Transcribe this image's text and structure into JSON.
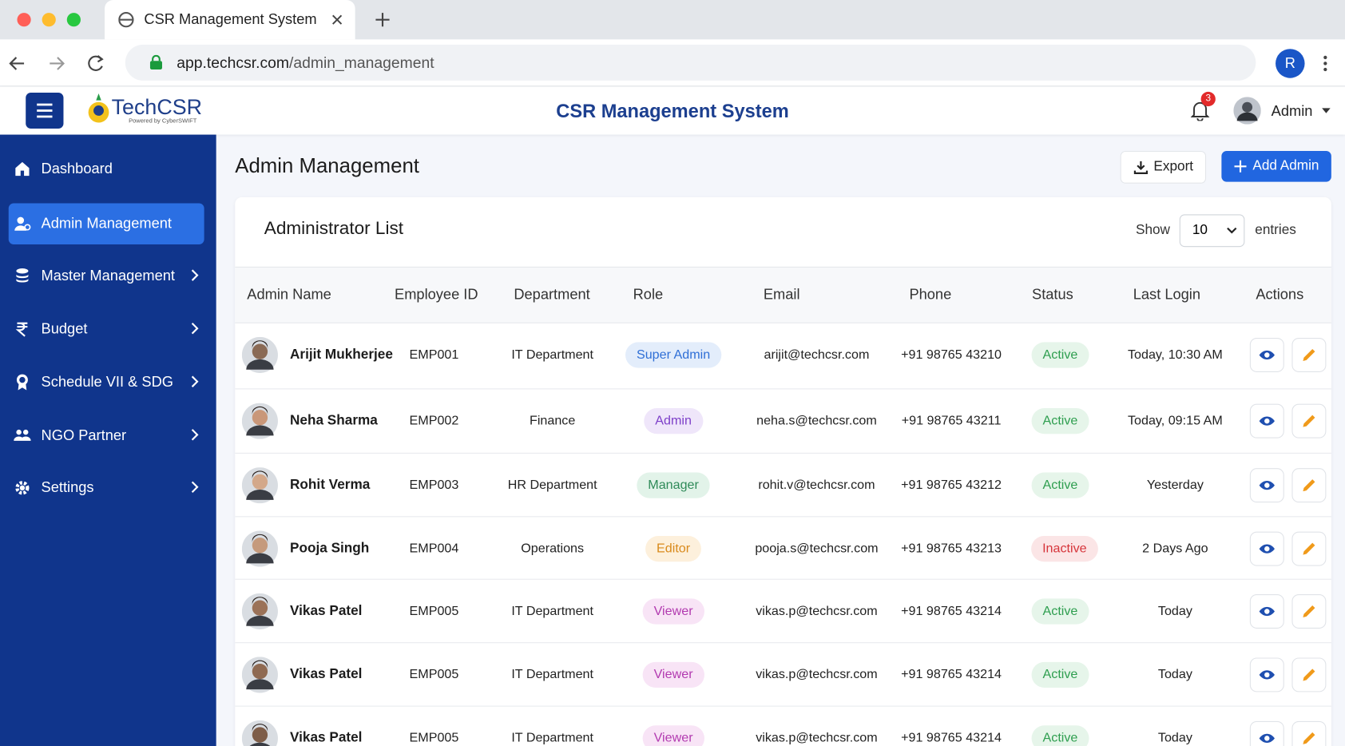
{
  "browser": {
    "tab_title": "CSR Management System",
    "url_host": "app.techcsr.com",
    "url_path": "/admin_management",
    "profile_initial": "R"
  },
  "header": {
    "logo_text": "TechCSR",
    "logo_tagline": "Powered by CyberSWIFT",
    "app_title": "CSR Management System",
    "notification_count": 3,
    "user": "Admin"
  },
  "sidebar": {
    "items": [
      {
        "label": "Dashboard",
        "active": false,
        "submenu": false
      },
      {
        "label": "Admin Management",
        "active": true,
        "submenu": false
      },
      {
        "label": "Master Management",
        "active": false,
        "submenu": true
      },
      {
        "label": "Budget",
        "active": false,
        "submenu": true
      },
      {
        "label": "Schedule VII & SDG",
        "active": false,
        "submenu": true
      },
      {
        "label": "NGO Partner",
        "active": false,
        "submenu": true
      },
      {
        "label": "Settings",
        "active": false,
        "submenu": true
      }
    ]
  },
  "page": {
    "title": "Admin Management",
    "export_button": "Export",
    "add_button": "Add Admin"
  },
  "table": {
    "title": "Administrator List",
    "show_label": "Show",
    "page_size": 10,
    "entries_label": "entries",
    "columns": [
      "Admin Name",
      "Employee ID",
      "Department",
      "Role",
      "Email",
      "Phone",
      "Status",
      "Last Login",
      "Actions"
    ],
    "rows": [
      {
        "name": "Arijit Mukherjee",
        "employee_id": "EMP001",
        "department": "IT Department",
        "role": "Super Admin",
        "role_color": "#2f6fd6",
        "role_bg": "#e3edfb",
        "email": "arijit@techcsr.com",
        "phone": "+91 98765 43210",
        "status": "Active",
        "status_color": "#2e9e4f",
        "status_bg": "#e6f5ea",
        "last_login": "Today, 10:30 AM"
      },
      {
        "name": "Neha Sharma",
        "employee_id": "EMP002",
        "department": "Finance",
        "role": "Admin",
        "role_color": "#7d3fc9",
        "role_bg": "#efe6fa",
        "email": "neha.s@techcsr.com",
        "phone": "+91 98765 43211",
        "status": "Active",
        "status_color": "#2e9e4f",
        "status_bg": "#e6f5ea",
        "last_login": "Today, 09:15 AM"
      },
      {
        "name": "Rohit Verma",
        "employee_id": "EMP003",
        "department": "HR Department",
        "role": "Manager",
        "role_color": "#2e8a58",
        "role_bg": "#e2f3e9",
        "email": "rohit.v@techcsr.com",
        "phone": "+91 98765 43212",
        "status": "Active",
        "status_color": "#2e9e4f",
        "status_bg": "#e6f5ea",
        "last_login": "Yesterday"
      },
      {
        "name": "Pooja Singh",
        "employee_id": "EMP004",
        "department": "Operations",
        "role": "Editor",
        "role_color": "#d98a1c",
        "role_bg": "#fdf0dc",
        "email": "pooja.s@techcsr.com",
        "phone": "+91 98765 43213",
        "status": "Inactive",
        "status_color": "#d6343a",
        "status_bg": "#fbe5e6",
        "last_login": "2 Days Ago"
      },
      {
        "name": "Vikas Patel",
        "employee_id": "EMP005",
        "department": "IT Department",
        "role": "Viewer",
        "role_color": "#b23ab0",
        "role_bg": "#f8e4f6",
        "email": "vikas.p@techcsr.com",
        "phone": "+91 98765 43214",
        "status": "Active",
        "status_color": "#2e9e4f",
        "status_bg": "#e6f5ea",
        "last_login": "Today"
      },
      {
        "name": "Vikas Patel",
        "employee_id": "EMP005",
        "department": "IT Department",
        "role": "Viewer",
        "role_color": "#b23ab0",
        "role_bg": "#f8e4f6",
        "email": "vikas.p@techcsr.com",
        "phone": "+91 98765 43214",
        "status": "Active",
        "status_color": "#2e9e4f",
        "status_bg": "#e6f5ea",
        "last_login": "Today"
      },
      {
        "name": "Vikas Patel",
        "employee_id": "EMP005",
        "department": "IT Department",
        "role": "Viewer",
        "role_color": "#b23ab0",
        "role_bg": "#f8e4f6",
        "email": "vikas.p@techcsr.com",
        "phone": "+91 98765 43214",
        "status": "Active",
        "status_color": "#2e9e4f",
        "status_bg": "#e6f5ea",
        "last_login": "Today"
      }
    ]
  }
}
